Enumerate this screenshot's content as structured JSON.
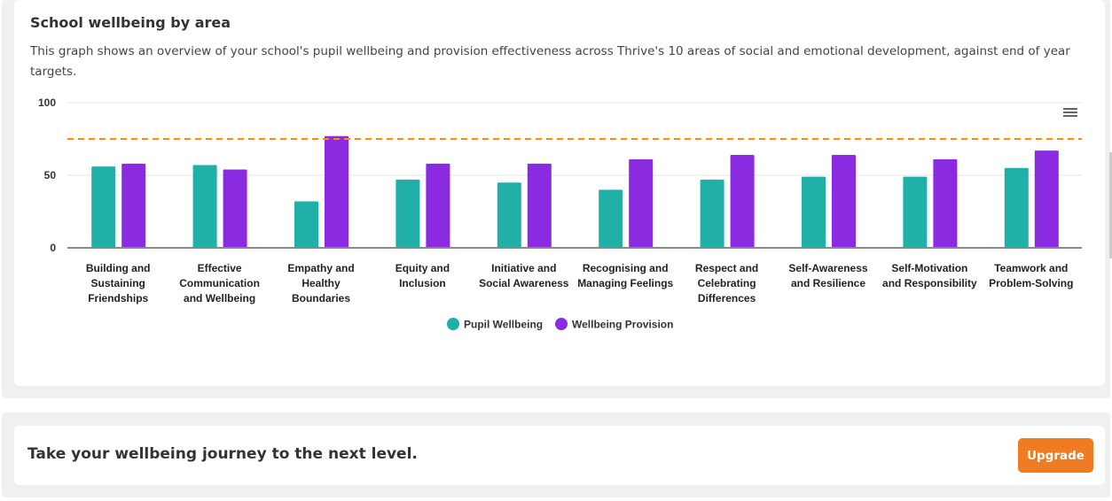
{
  "card": {
    "title": "School wellbeing by area",
    "description": "This graph shows an overview of your school's pupil wellbeing and provision effectiveness across Thrive's 10 areas of social and emotional development, against end of year targets."
  },
  "chart_data": {
    "type": "bar",
    "categories": [
      [
        "Building and",
        "Sustaining",
        "Friendships"
      ],
      [
        "Effective",
        "Communication",
        "and Wellbeing"
      ],
      [
        "Empathy and",
        "Healthy",
        "Boundaries"
      ],
      [
        "Equity and",
        "Inclusion"
      ],
      [
        "Initiative and",
        "Social Awareness"
      ],
      [
        "Recognising and",
        "Managing Feelings"
      ],
      [
        "Respect and",
        "Celebrating",
        "Differences"
      ],
      [
        "Self-Awareness",
        "and Resilience"
      ],
      [
        "Self-Motivation",
        "and Responsibility"
      ],
      [
        "Teamwork and",
        "Problem-Solving"
      ]
    ],
    "series": [
      {
        "name": "Pupil Wellbeing",
        "color": "#20b0a8",
        "values": [
          56,
          57,
          32,
          47,
          45,
          40,
          47,
          49,
          49,
          55
        ]
      },
      {
        "name": "Wellbeing Provision",
        "color": "#8a2be2",
        "values": [
          58,
          54,
          77,
          58,
          58,
          61,
          64,
          64,
          61,
          67
        ]
      }
    ],
    "target": {
      "value": 75,
      "color": "#ff8c00"
    },
    "yticks": [
      0,
      50,
      100
    ],
    "ylim": [
      0,
      100
    ],
    "legend": "bottom-center"
  },
  "footer": {
    "cta": "Take your wellbeing journey to the next level.",
    "upgrade_label": "Upgrade"
  }
}
